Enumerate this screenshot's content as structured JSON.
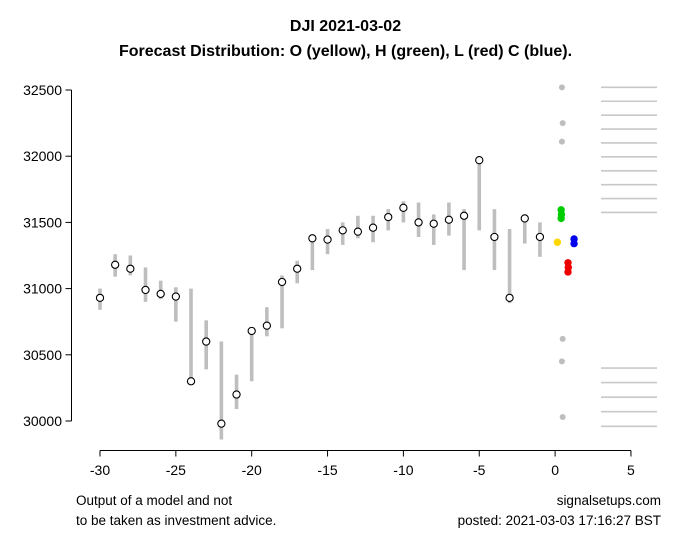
{
  "chart": {
    "title": "DJI 2021-03-02",
    "subtitle": "Forecast Distribution: O (yellow), H (green), L (red) C (blue)."
  },
  "footer": {
    "disclaimer_line1": "Output of a model and not",
    "disclaimer_line2": "to be taken as investment advice.",
    "site": "signalsetups.com",
    "posted": "posted: 2021-03-03 17:16:27 BST"
  },
  "colors": {
    "bar": "#BEBEBE",
    "close_marker_fill": "#FFFFFF",
    "close_marker_stroke": "#000000",
    "rug": "#C8C8C8",
    "outliers": "#BEBEBE",
    "open": "#FFD700",
    "high": "#00CD00",
    "low": "#EE0000",
    "close": "#0000EE",
    "axis": "#000000"
  },
  "chart_data": {
    "type": "scatter",
    "subtype": "daily high-low range bars with open-circle close markers, plus colored forecast distribution points and right-edge rug marks",
    "title": "DJI 2021-03-02",
    "xlabel": "",
    "ylabel": "",
    "xlim": [
      -31.5,
      6.5
    ],
    "ylim": [
      29840,
      32560
    ],
    "grid": false,
    "legend": "in subtitle: O yellow, H green, L red, C blue",
    "x_ticks": [
      -30,
      -25,
      -20,
      -15,
      -10,
      -5,
      0,
      5
    ],
    "y_ticks": [
      30000,
      30500,
      31000,
      31500,
      32000,
      32500
    ],
    "history": {
      "x": [
        -30,
        -29,
        -28,
        -27,
        -26,
        -25,
        -24,
        -23,
        -22,
        -21,
        -20,
        -19,
        -18,
        -17,
        -16,
        -15,
        -14,
        -13,
        -12,
        -11,
        -10,
        -9,
        -8,
        -7,
        -6,
        -5,
        -4,
        -3,
        -2,
        -1
      ],
      "low": [
        30840,
        31090,
        31100,
        30900,
        30920,
        30750,
        30290,
        30390,
        29860,
        30090,
        30300,
        30640,
        30700,
        31040,
        31140,
        31260,
        31330,
        31380,
        31350,
        31440,
        31500,
        31390,
        31330,
        31400,
        31140,
        31440,
        31140,
        30890,
        31340,
        31240
      ],
      "high": [
        31000,
        31260,
        31250,
        31160,
        31060,
        31010,
        31000,
        30760,
        30600,
        30350,
        30700,
        30860,
        31100,
        31210,
        31400,
        31450,
        31500,
        31550,
        31550,
        31600,
        31660,
        31650,
        31560,
        31650,
        31600,
        31980,
        31600,
        31450,
        31560,
        31500
      ],
      "close": [
        30930,
        31180,
        31150,
        30990,
        30960,
        30940,
        30300,
        30600,
        29980,
        30200,
        30680,
        30720,
        31050,
        31150,
        31380,
        31370,
        31440,
        31430,
        31460,
        31540,
        31610,
        31500,
        31490,
        31520,
        31550,
        31970,
        31390,
        30930,
        31530,
        31390
      ]
    },
    "forecast": {
      "open": {
        "points": [
          {
            "x": 0.15,
            "y": 31350
          }
        ]
      },
      "high": {
        "points": [
          {
            "x": 0.4,
            "y": 31595
          },
          {
            "x": 0.42,
            "y": 31560
          },
          {
            "x": 0.4,
            "y": 31530
          }
        ]
      },
      "low": {
        "points": [
          {
            "x": 0.85,
            "y": 31195
          },
          {
            "x": 0.87,
            "y": 31160
          },
          {
            "x": 0.85,
            "y": 31125
          }
        ]
      },
      "close": {
        "points": [
          {
            "x": 1.25,
            "y": 31375
          },
          {
            "x": 1.25,
            "y": 31340
          }
        ]
      },
      "outliers": {
        "points": [
          {
            "x": 0.45,
            "y": 32520
          },
          {
            "x": 0.5,
            "y": 32250
          },
          {
            "x": 0.45,
            "y": 32110
          },
          {
            "x": 0.5,
            "y": 30620
          },
          {
            "x": 0.45,
            "y": 30450
          },
          {
            "x": 0.5,
            "y": 30030
          }
        ]
      }
    },
    "right_rug": {
      "values": [
        32520,
        32415,
        32310,
        32205,
        32100,
        31995,
        31890,
        31785,
        31680,
        31575,
        30400,
        30290,
        30180,
        30070,
        29960
      ]
    }
  }
}
